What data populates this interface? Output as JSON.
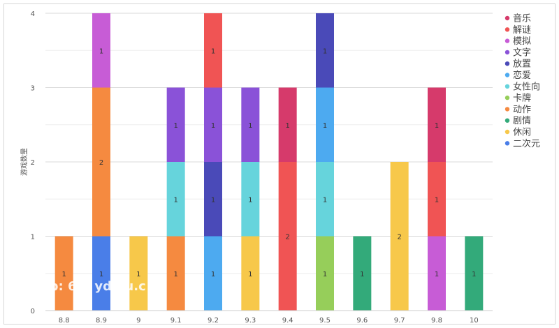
{
  "chart_data": {
    "type": "bar",
    "stacked": true,
    "ylabel": "游戏数量",
    "ylim": [
      0,
      4
    ],
    "yticks": [
      "0",
      "1",
      "2",
      "3",
      "4"
    ],
    "categories": [
      "8.8",
      "8.9",
      "9",
      "9.1",
      "9.2",
      "9.3",
      "9.4",
      "9.5",
      "9.6",
      "9.7",
      "9.8",
      "10"
    ],
    "legend": [
      {
        "name": "音乐",
        "color": "#d63a6b"
      },
      {
        "name": "解谜",
        "color": "#f05454"
      },
      {
        "name": "模拟",
        "color": "#c75cd6"
      },
      {
        "name": "文字",
        "color": "#8a52d8"
      },
      {
        "name": "放置",
        "color": "#4a4ab8"
      },
      {
        "name": "恋爱",
        "color": "#4daaf0"
      },
      {
        "name": "女性向",
        "color": "#66d4dc"
      },
      {
        "name": "卡牌",
        "color": "#96ce5a"
      },
      {
        "name": "动作",
        "color": "#f58a40"
      },
      {
        "name": "剧情",
        "color": "#33aa7a"
      },
      {
        "name": "休闲",
        "color": "#f7c84a"
      },
      {
        "name": "二次元",
        "color": "#4a7ee8"
      }
    ],
    "stacks": [
      [
        {
          "series": "动作",
          "value": 1
        }
      ],
      [
        {
          "series": "二次元",
          "value": 1
        },
        {
          "series": "动作",
          "value": 2
        },
        {
          "series": "模拟",
          "value": 1
        }
      ],
      [
        {
          "series": "休闲",
          "value": 1
        }
      ],
      [
        {
          "series": "动作",
          "value": 1
        },
        {
          "series": "女性向",
          "value": 1
        },
        {
          "series": "文字",
          "value": 1
        }
      ],
      [
        {
          "series": "恋爱",
          "value": 1
        },
        {
          "series": "放置",
          "value": 1
        },
        {
          "series": "文字",
          "value": 1
        },
        {
          "series": "解谜",
          "value": 1
        }
      ],
      [
        {
          "series": "休闲",
          "value": 1
        },
        {
          "series": "女性向",
          "value": 1
        },
        {
          "series": "文字",
          "value": 1
        }
      ],
      [
        {
          "series": "解谜",
          "value": 2
        },
        {
          "series": "音乐",
          "value": 1
        }
      ],
      [
        {
          "series": "卡牌",
          "value": 1
        },
        {
          "series": "女性向",
          "value": 1
        },
        {
          "series": "恋爱",
          "value": 1
        },
        {
          "series": "放置",
          "value": 1
        }
      ],
      [
        {
          "series": "剧情",
          "value": 1
        }
      ],
      [
        {
          "series": "休闲",
          "value": 2
        }
      ],
      [
        {
          "series": "模拟",
          "value": 1
        },
        {
          "series": "解谜",
          "value": 1
        },
        {
          "series": "音乐",
          "value": 1
        }
      ],
      [
        {
          "series": "剧情",
          "value": 1
        }
      ]
    ]
  },
  "watermark": "tp: 6.h yda u.c"
}
